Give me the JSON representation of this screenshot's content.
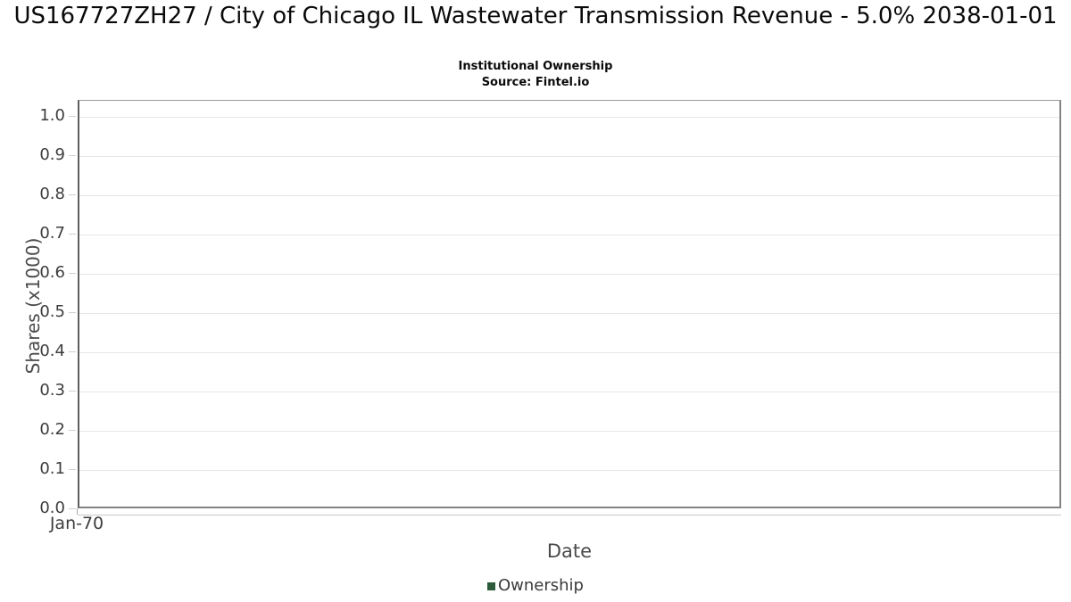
{
  "header": {
    "title": "US167727ZH27 / City of Chicago IL Wastewater Transmission Revenue - 5.0% 2038-01-01",
    "subtitle": "Institutional Ownership",
    "source": "Source: Fintel.io"
  },
  "chart_data": {
    "type": "line",
    "title": "US167727ZH27 / City of Chicago IL Wastewater Transmission Revenue - 5.0% 2038-01-01",
    "subtitle": "Institutional Ownership",
    "source": "Source: Fintel.io",
    "xlabel": "Date",
    "ylabel": "Shares (x1000)",
    "x_ticks": [
      "Jan-70"
    ],
    "y_ticks": [
      "0.0",
      "0.1",
      "0.2",
      "0.3",
      "0.4",
      "0.5",
      "0.6",
      "0.7",
      "0.8",
      "0.9",
      "1.0"
    ],
    "ylim": [
      0,
      1.04
    ],
    "grid": "horizontal",
    "legend_position": "bottom",
    "series": [
      {
        "name": "Ownership",
        "color": "#2d5a3b",
        "x": [],
        "values": []
      }
    ]
  }
}
